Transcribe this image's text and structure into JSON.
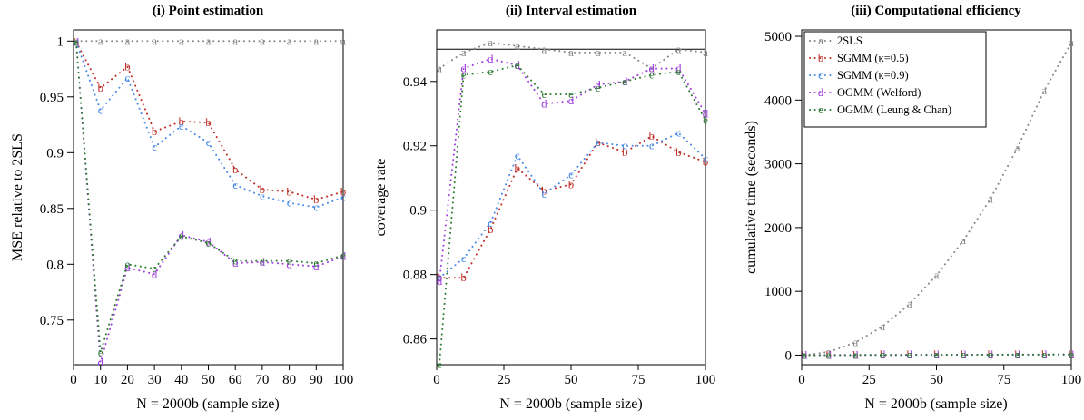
{
  "chart_data": [
    {
      "type": "line",
      "title": "(i) Point estimation",
      "xlabel": "N = 2000b (sample size)",
      "ylabel": "MSE relative to 2SLS",
      "xlim": [
        0,
        100
      ],
      "ylim": [
        0.71,
        1.01
      ],
      "xticks": [
        0,
        10,
        20,
        30,
        40,
        50,
        60,
        70,
        80,
        90,
        100
      ],
      "xtick_labels": [
        "0",
        "10",
        "20",
        "30",
        "40",
        "50",
        "60",
        "70",
        "80",
        "90",
        "100"
      ],
      "yticks": [
        0.75,
        0.8,
        0.85,
        0.9,
        0.95,
        1
      ],
      "ytick_labels": [
        "0.75",
        "0.8",
        "0.85",
        "0.9",
        "0.95",
        "1"
      ],
      "x": [
        1,
        10,
        20,
        30,
        40,
        50,
        60,
        70,
        80,
        90,
        100
      ],
      "series": [
        {
          "marker": "a",
          "color": "#888888",
          "values": [
            1,
            1,
            1,
            1,
            1,
            1,
            1,
            1,
            1,
            1,
            1
          ]
        },
        {
          "marker": "b",
          "color": "#c0302a",
          "values": [
            0.999,
            0.958,
            0.977,
            0.919,
            0.928,
            0.927,
            0.885,
            0.867,
            0.865,
            0.858,
            0.865
          ]
        },
        {
          "marker": "c",
          "color": "#4a8ce8",
          "values": [
            0.999,
            0.938,
            0.967,
            0.905,
            0.924,
            0.909,
            0.871,
            0.861,
            0.855,
            0.851,
            0.86
          ]
        },
        {
          "marker": "d",
          "color": "#a040e0",
          "values": [
            0.999,
            0.712,
            0.797,
            0.791,
            0.826,
            0.82,
            0.801,
            0.802,
            0.8,
            0.798,
            0.807
          ]
        },
        {
          "marker": "e",
          "color": "#2e7d32",
          "values": [
            0.999,
            0.721,
            0.8,
            0.796,
            0.825,
            0.819,
            0.803,
            0.803,
            0.803,
            0.801,
            0.808
          ]
        }
      ]
    },
    {
      "type": "line",
      "title": "(ii) Interval estimation",
      "xlabel": "N = 2000b (sample size)",
      "ylabel": "coverage rate",
      "xlim": [
        0,
        100
      ],
      "ylim": [
        0.852,
        0.956
      ],
      "xticks": [
        0,
        25,
        50,
        75,
        100
      ],
      "xtick_labels": [
        "0",
        "25",
        "50",
        "75",
        "100"
      ],
      "yticks": [
        0.86,
        0.88,
        0.9,
        0.92,
        0.94
      ],
      "ytick_labels": [
        "0.86",
        "0.88",
        "0.9",
        "0.92",
        "0.94"
      ],
      "reference_line": 0.95,
      "x": [
        1,
        10,
        20,
        30,
        40,
        50,
        60,
        70,
        80,
        90,
        100
      ],
      "series": [
        {
          "marker": "a",
          "color": "#888888",
          "values": [
            0.944,
            0.949,
            0.952,
            0.951,
            0.95,
            0.949,
            0.949,
            0.949,
            0.944,
            0.95,
            0.949
          ]
        },
        {
          "marker": "b",
          "color": "#c0302a",
          "values": [
            0.879,
            0.879,
            0.894,
            0.913,
            0.906,
            0.908,
            0.921,
            0.918,
            0.923,
            0.918,
            0.915
          ]
        },
        {
          "marker": "c",
          "color": "#4a8ce8",
          "values": [
            0.879,
            0.885,
            0.896,
            0.917,
            0.905,
            0.911,
            0.921,
            0.92,
            0.92,
            0.924,
            0.916
          ]
        },
        {
          "marker": "d",
          "color": "#a040e0",
          "values": [
            0.878,
            0.944,
            0.947,
            0.945,
            0.933,
            0.934,
            0.939,
            0.94,
            0.944,
            0.944,
            0.93
          ]
        },
        {
          "marker": "e",
          "color": "#2e7d32",
          "values": [
            0.852,
            0.942,
            0.943,
            0.945,
            0.936,
            0.936,
            0.938,
            0.94,
            0.942,
            0.943,
            0.928
          ]
        }
      ]
    },
    {
      "type": "line",
      "title": "(iii) Computational efficiency",
      "xlabel": "N = 2000b (sample size)",
      "ylabel": "cumulative time (seconds)",
      "xlim": [
        0,
        100
      ],
      "ylim": [
        -150,
        5100
      ],
      "xticks": [
        0,
        25,
        50,
        75,
        100
      ],
      "xtick_labels": [
        "0",
        "25",
        "50",
        "75",
        "100"
      ],
      "yticks": [
        0,
        1000,
        2000,
        3000,
        4000,
        5000
      ],
      "ytick_labels": [
        "0",
        "1000",
        "2000",
        "3000",
        "4000",
        "5000"
      ],
      "x": [
        1,
        10,
        20,
        30,
        40,
        50,
        60,
        70,
        80,
        90,
        100
      ],
      "legend_position": "top-left",
      "series": [
        {
          "name": "2SLS",
          "marker": "a",
          "color": "#888888",
          "values": [
            0,
            50,
            200,
            450,
            800,
            1250,
            1800,
            2450,
            3250,
            4150,
            4900
          ]
        },
        {
          "name": "SGMM (κ=0.5)",
          "marker": "b",
          "color": "#c0302a",
          "values": [
            0,
            0,
            2,
            3,
            4,
            5,
            6,
            7,
            8,
            9,
            10
          ]
        },
        {
          "name": "SGMM (κ=0.9)",
          "marker": "c",
          "color": "#4a8ce8",
          "values": [
            0,
            0,
            2,
            3,
            4,
            5,
            6,
            7,
            8,
            9,
            10
          ]
        },
        {
          "name": "OGMM (Welford)",
          "marker": "d",
          "color": "#a040e0",
          "values": [
            0,
            0,
            2,
            3,
            4,
            5,
            6,
            7,
            8,
            9,
            10
          ]
        },
        {
          "name": "OGMM (Leung & Chan)",
          "marker": "e",
          "color": "#2e7d32",
          "values": [
            0,
            0,
            2,
            3,
            4,
            5,
            6,
            7,
            8,
            9,
            10
          ]
        }
      ]
    }
  ]
}
